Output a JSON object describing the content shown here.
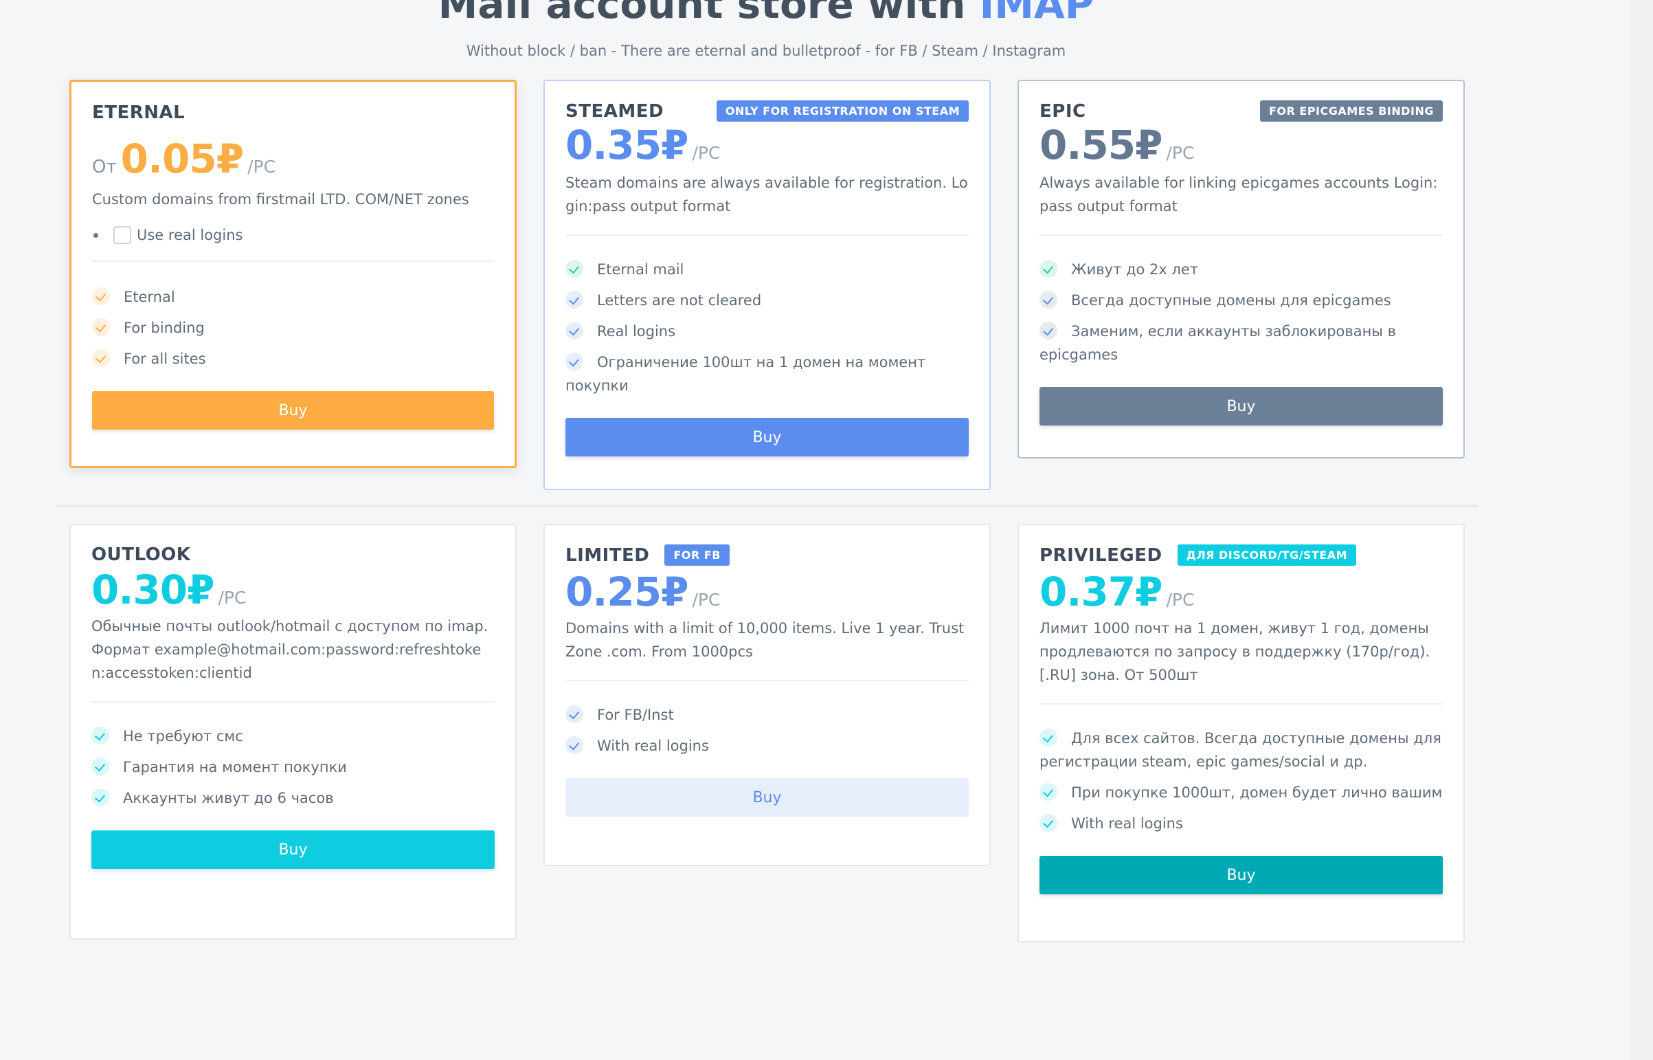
{
  "header": {
    "title_main": "Mail account store with ",
    "title_accent": "IMAP",
    "subtitle": "Without block / ban - There are eternal and bulletproof - for FB / Steam / Instagram"
  },
  "colors": {
    "orange": "#ffad42",
    "blue": "#5b8def",
    "slate": "#6b7f97",
    "cyan": "#0fcde0",
    "teal": "#00aab5"
  },
  "cards": [
    {
      "name": "ETERNAL",
      "price_prefix": "От",
      "price": "0.05₽",
      "unit": "/PC",
      "description": "Custom domains from firstmail LTD. COM/NET zones",
      "option": "Use real logins",
      "features": [
        "Eternal",
        "For binding",
        "For all sites"
      ],
      "button": "Buy"
    },
    {
      "name": "STEAMED",
      "badge": "ONLY FOR REGISTRATION ON STEAM",
      "price": "0.35₽",
      "unit": "/PC",
      "description": "Steam domains are always available for registration. Login:pass output format",
      "features": [
        "Eternal mail",
        "Letters are not cleared",
        "Real logins",
        "Ограничение 100шт на 1 домен на момент покупки"
      ],
      "button": "Buy"
    },
    {
      "name": "EPIC",
      "badge": "FOR EPICGAMES BINDING",
      "price": "0.55₽",
      "unit": "/PC",
      "description": "Always available for linking epicgames accounts Login:pass output format",
      "features": [
        "Живут до 2х лет",
        "Всегда доступные домены для epicgames",
        "Заменим, если аккаунты заблокированы в epicgames"
      ],
      "button": "Buy"
    },
    {
      "name": "OUTLOOK",
      "price": "0.30₽",
      "unit": "/PC",
      "description": "Обычные почты outlook/hotmail с доступом по imap. Формат example@hotmail.com:password:refreshtoken:accesstoken:clientid",
      "features": [
        "Не требуют смс",
        "Гарантия на момент покупки",
        "Аккаунты живут до 6 часов"
      ],
      "button": "Buy"
    },
    {
      "name": "LIMITED",
      "badge": "FOR FB",
      "price": "0.25₽",
      "unit": "/PC",
      "description": "Domains with a limit of 10,000 items. Live 1 year. Trust Zone .com. From 1000pcs",
      "features": [
        "For FB/Inst",
        "With real logins"
      ],
      "button": "Buy"
    },
    {
      "name": "PRIVILEGED",
      "badge": "ДЛЯ DISCORD/TG/STEAM",
      "price": "0.37₽",
      "unit": "/PC",
      "description": "Лимит 1000 почт на 1 домен, живут 1 год, домены продлеваются по запросу в поддержку (170р/год). [.RU] зона. От 500шт",
      "features": [
        "Для всех сайтов. Всегда доступные домены для регистрации steam, epic games/social и др.",
        "При покупке 1000шт, домен будет лично вашим",
        "With real logins"
      ],
      "button": "Buy"
    }
  ]
}
